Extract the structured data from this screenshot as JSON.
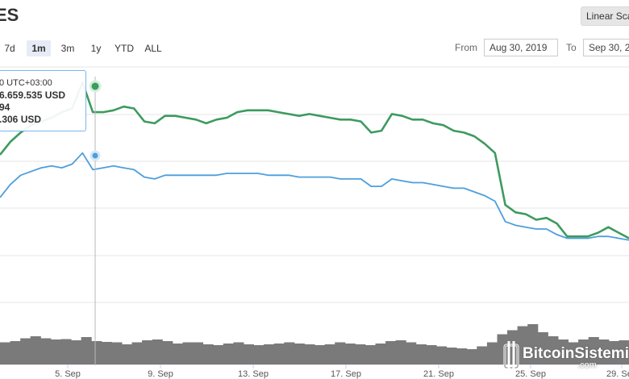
{
  "header": {
    "title": "ES",
    "scale_button": "Linear Sca"
  },
  "range_buttons": [
    {
      "label": "7d",
      "active": false
    },
    {
      "label": "1m",
      "active": true
    },
    {
      "label": "3m",
      "active": false
    },
    {
      "label": "1y",
      "active": false
    },
    {
      "label": "YTD",
      "active": false
    },
    {
      "label": "ALL",
      "active": false
    }
  ],
  "date_range": {
    "from_label": "From",
    "from_value": "Aug 30, 2019",
    "to_label": "To",
    "to_value": "Sep 30, 2"
  },
  "tooltip": {
    "time": "0 UTC+03:00",
    "line1": "6.659.535 USD",
    "line2": "94",
    "line3": ".306 USD"
  },
  "watermark": {
    "brand": "BitcoinSistemi",
    "sub": ".com"
  },
  "colors": {
    "market_cap": "#3d9b5e",
    "price": "#4d9fdb",
    "volume": "#7a7a7a",
    "tooltip_border": "#7cb5ec"
  },
  "chart_data": {
    "type": "line",
    "x_axis": {
      "ticks": [
        "5. Sep",
        "9. Sep",
        "13. Sep",
        "17. Sep",
        "21. Sep",
        "25. Sep",
        "29. Sep"
      ],
      "range": [
        "Sep 1",
        "Sep 30"
      ]
    },
    "grid": true,
    "series": [
      {
        "key": "market_cap",
        "relative_level": [
          0.6,
          0.67,
          0.72,
          0.76,
          0.78,
          0.8,
          0.83,
          0.85,
          0.99,
          0.83,
          0.83,
          0.84,
          0.86,
          0.85,
          0.78,
          0.77,
          0.81,
          0.81,
          0.8,
          0.79,
          0.77,
          0.79,
          0.8,
          0.83,
          0.84,
          0.84,
          0.84,
          0.83,
          0.82,
          0.81,
          0.82,
          0.81,
          0.8,
          0.79,
          0.79,
          0.78,
          0.72,
          0.73,
          0.82,
          0.81,
          0.79,
          0.79,
          0.77,
          0.76,
          0.73,
          0.72,
          0.7,
          0.66,
          0.61,
          0.33,
          0.29,
          0.28,
          0.25,
          0.26,
          0.23,
          0.16,
          0.16,
          0.16,
          0.18,
          0.21,
          0.18,
          0.15
        ]
      },
      {
        "key": "price",
        "relative_level": [
          0.37,
          0.44,
          0.49,
          0.51,
          0.53,
          0.54,
          0.53,
          0.55,
          0.61,
          0.52,
          0.53,
          0.54,
          0.53,
          0.52,
          0.48,
          0.47,
          0.49,
          0.49,
          0.49,
          0.49,
          0.49,
          0.49,
          0.5,
          0.5,
          0.5,
          0.5,
          0.49,
          0.49,
          0.49,
          0.48,
          0.48,
          0.48,
          0.48,
          0.47,
          0.47,
          0.47,
          0.43,
          0.43,
          0.47,
          0.46,
          0.45,
          0.45,
          0.44,
          0.43,
          0.42,
          0.42,
          0.4,
          0.38,
          0.35,
          0.24,
          0.22,
          0.21,
          0.2,
          0.2,
          0.17,
          0.15,
          0.15,
          0.15,
          0.16,
          0.16,
          0.15,
          0.14
        ]
      },
      {
        "key": "volume",
        "relative_level": [
          0.55,
          0.58,
          0.65,
          0.7,
          0.65,
          0.62,
          0.63,
          0.6,
          0.68,
          0.58,
          0.56,
          0.55,
          0.5,
          0.55,
          0.6,
          0.62,
          0.58,
          0.52,
          0.55,
          0.55,
          0.5,
          0.48,
          0.52,
          0.55,
          0.5,
          0.48,
          0.5,
          0.52,
          0.55,
          0.52,
          0.5,
          0.48,
          0.5,
          0.55,
          0.52,
          0.5,
          0.48,
          0.52,
          0.58,
          0.6,
          0.55,
          0.5,
          0.48,
          0.45,
          0.42,
          0.4,
          0.38,
          0.45,
          0.55,
          0.75,
          0.85,
          0.95,
          1.0,
          0.8,
          0.7,
          0.62,
          0.55,
          0.62,
          0.68,
          0.62,
          0.58,
          0.6
        ]
      }
    ]
  }
}
